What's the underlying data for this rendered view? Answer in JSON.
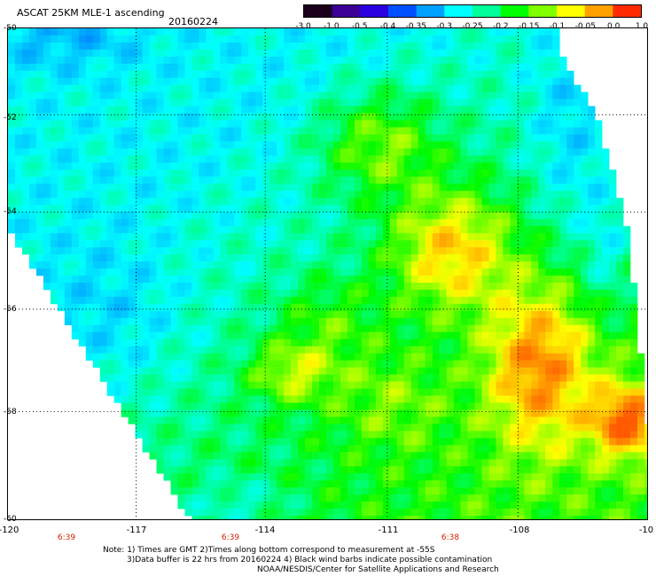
{
  "title": "ASCAT 25KM MLE-1 ascending",
  "date": "20160224",
  "colorbar": {
    "labels": [
      "-3.0",
      "-1.0",
      "-0.5",
      "-0.4",
      "-0.35",
      "-0.3",
      "-0.25",
      "-0.2",
      "-0.15",
      "-0.1",
      "-0.05",
      "0.0",
      "1.0"
    ],
    "colors": [
      "#1a001a",
      "#3c0096",
      "#2a00e0",
      "#0050ff",
      "#00a0ff",
      "#00ffff",
      "#00ff9a",
      "#00ff00",
      "#80ff00",
      "#ffff00",
      "#ffa000",
      "#ff2a00"
    ]
  },
  "map": {
    "lon_labels": [
      "-120",
      "-117",
      "-114",
      "-111",
      "-108",
      "-10"
    ],
    "lat_labels": [
      "-50",
      "-52",
      "-54",
      "-56",
      "-58",
      "-60"
    ],
    "time_labels": [
      "6:39",
      "6:39",
      "6:38"
    ]
  },
  "notes": {
    "line1": "Note: 1) Times are GMT 2)Times along bottom correspond to measurement at -55S",
    "line2": "3)Data buffer is 22 hrs from 20160224 4) Black wind barbs indicate possible contamination",
    "line3": "NOAA/NESDIS/Center for Satellite Applications and Research"
  }
}
